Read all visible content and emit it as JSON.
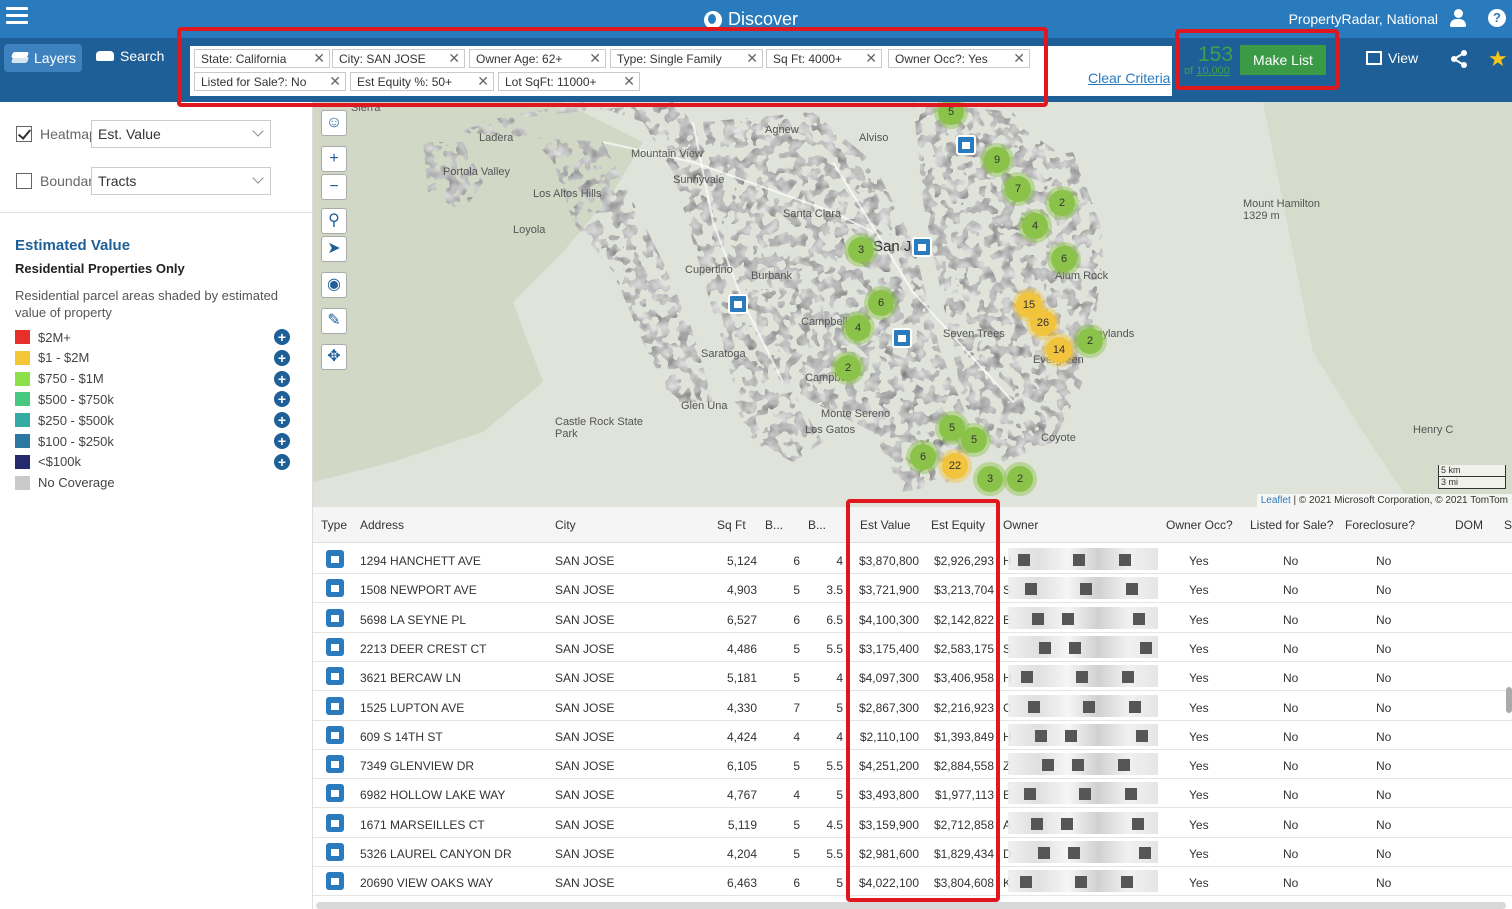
{
  "topbar": {
    "title": "Discover",
    "account": "PropertyRadar, National",
    "help": "?"
  },
  "toolbar": {
    "layers_label": "Layers",
    "search_label": "Search",
    "criteria": [
      "State: California",
      "City: SAN JOSE",
      "Owner Age: 62+",
      "Type: Single Family",
      "Sq Ft: 4000+",
      "Owner Occ?: Yes",
      "Listed for Sale?: No",
      "Est Equity %: 50+",
      "Lot SqFt: 11000+"
    ],
    "clear_label": "Clear Criteria",
    "count": "153",
    "count_of_prefix": "of",
    "count_of_total": "10,000",
    "make_list_label": "Make List",
    "view_label": "View",
    "remove_glyph": "✕"
  },
  "left_panel": {
    "heatmap_label": "Heatmap:",
    "heatmap_value": "Est. Value",
    "heatmap_checked": true,
    "boundary_label": "Boundary:",
    "boundary_value": "Tracts",
    "boundary_checked": false,
    "legend_title": "Estimated Value",
    "legend_subtitle": "Residential Properties Only",
    "legend_description": "Residential parcel areas shaded by estimated value of property",
    "legend": [
      {
        "label": "$2M+",
        "color": "#e8302b"
      },
      {
        "label": "$1 - $2M",
        "color": "#f3c537"
      },
      {
        "label": "$750 - $1M",
        "color": "#8ee04b"
      },
      {
        "label": "$500 - $750k",
        "color": "#46c880"
      },
      {
        "label": "$250 - $500k",
        "color": "#33aaa2"
      },
      {
        "label": "$100 - $250k",
        "color": "#2d78a3"
      },
      {
        "label": "<$100k",
        "color": "#252a6e"
      },
      {
        "label": "No Coverage",
        "color": "#c9c9c9"
      }
    ]
  },
  "map": {
    "places": [
      "Sierra",
      "Ladera",
      "Mountain View",
      "Portola Valley",
      "Sunnyvale",
      "Los Altos Hills",
      "Loyola",
      "Santa Clara",
      "Cupertino",
      "Burbank",
      "San Jo",
      "Campbell",
      "Saratoga",
      "Campbell",
      "Glen Una",
      "Castle Rock State Park",
      "Monte Sereno",
      "Los Gatos",
      "Mount Hamilton 1329 m",
      "Henry C",
      "Coyote",
      "Alum Rock",
      "Seven Trees",
      "Evergreen",
      "Agnew",
      "Alviso",
      "Baylands"
    ],
    "clusters": [
      {
        "n": "5",
        "c": "g"
      },
      {
        "n": "9",
        "c": "g"
      },
      {
        "n": "7",
        "c": "g"
      },
      {
        "n": "2",
        "c": "g"
      },
      {
        "n": "4",
        "c": "g"
      },
      {
        "n": "6",
        "c": "g"
      },
      {
        "n": "3",
        "c": "g"
      },
      {
        "n": "6",
        "c": "g"
      },
      {
        "n": "4",
        "c": "g"
      },
      {
        "n": "15",
        "c": "y"
      },
      {
        "n": "26",
        "c": "y"
      },
      {
        "n": "14",
        "c": "y"
      },
      {
        "n": "2",
        "c": "g"
      },
      {
        "n": "2",
        "c": "g"
      },
      {
        "n": "5",
        "c": "g"
      },
      {
        "n": "5",
        "c": "g"
      },
      {
        "n": "6",
        "c": "g"
      },
      {
        "n": "22",
        "c": "y"
      },
      {
        "n": "3",
        "c": "g"
      },
      {
        "n": "2",
        "c": "g"
      }
    ],
    "scale_km": "5 km",
    "scale_mi": "3 mi",
    "attribution_link": "Leaflet",
    "attribution_text": "| © 2021 Microsoft Corporation, © 2021 TomTom"
  },
  "table": {
    "columns": [
      "Type",
      "Address",
      "City",
      "Sq Ft",
      "B...",
      "B...",
      "Est Value",
      "Est Equity",
      "Owner",
      "Owner Occ?",
      "Listed for Sale?",
      "Foreclosure?",
      "DOM",
      "S"
    ],
    "rows": [
      {
        "address": "1294 HANCHETT AVE",
        "city": "SAN JOSE",
        "sqft": "5,124",
        "beds": "6",
        "baths": "4",
        "value": "$3,870,800",
        "equity": "$2,926,293",
        "owner": "H",
        "occ": "Yes",
        "listed": "No",
        "fc": "No"
      },
      {
        "address": "1508 NEWPORT AVE",
        "city": "SAN JOSE",
        "sqft": "4,903",
        "beds": "5",
        "baths": "3.5",
        "value": "$3,721,900",
        "equity": "$3,213,704",
        "owner": "S",
        "occ": "Yes",
        "listed": "No",
        "fc": "No"
      },
      {
        "address": "5698 LA SEYNE PL",
        "city": "SAN JOSE",
        "sqft": "6,527",
        "beds": "6",
        "baths": "6.5",
        "value": "$4,100,300",
        "equity": "$2,142,822",
        "owner": "E",
        "occ": "Yes",
        "listed": "No",
        "fc": "No"
      },
      {
        "address": "2213 DEER CREST CT",
        "city": "SAN JOSE",
        "sqft": "4,486",
        "beds": "5",
        "baths": "5.5",
        "value": "$3,175,400",
        "equity": "$2,583,175",
        "owner": "S",
        "occ": "Yes",
        "listed": "No",
        "fc": "No"
      },
      {
        "address": "3621 BERCAW LN",
        "city": "SAN JOSE",
        "sqft": "5,181",
        "beds": "5",
        "baths": "4",
        "value": "$4,097,300",
        "equity": "$3,406,958",
        "owner": "H",
        "occ": "Yes",
        "listed": "No",
        "fc": "No"
      },
      {
        "address": "1525 LUPTON AVE",
        "city": "SAN JOSE",
        "sqft": "4,330",
        "beds": "7",
        "baths": "5",
        "value": "$2,867,300",
        "equity": "$2,216,923",
        "owner": "C",
        "occ": "Yes",
        "listed": "No",
        "fc": "No"
      },
      {
        "address": "609 S 14TH ST",
        "city": "SAN JOSE",
        "sqft": "4,424",
        "beds": "4",
        "baths": "4",
        "value": "$2,110,100",
        "equity": "$1,393,849",
        "owner": "H",
        "occ": "Yes",
        "listed": "No",
        "fc": "No"
      },
      {
        "address": "7349 GLENVIEW DR",
        "city": "SAN JOSE",
        "sqft": "6,105",
        "beds": "5",
        "baths": "5.5",
        "value": "$4,251,200",
        "equity": "$2,884,558",
        "owner": "Z",
        "occ": "Yes",
        "listed": "No",
        "fc": "No"
      },
      {
        "address": "6982 HOLLOW LAKE WAY",
        "city": "SAN JOSE",
        "sqft": "4,767",
        "beds": "4",
        "baths": "5",
        "value": "$3,493,800",
        "equity": "$1,977,113",
        "owner": "E",
        "occ": "Yes",
        "listed": "No",
        "fc": "No"
      },
      {
        "address": "1671 MARSEILLES CT",
        "city": "SAN JOSE",
        "sqft": "5,119",
        "beds": "5",
        "baths": "4.5",
        "value": "$3,159,900",
        "equity": "$2,712,858",
        "owner": "A",
        "occ": "Yes",
        "listed": "No",
        "fc": "No"
      },
      {
        "address": "5326 LAUREL CANYON DR",
        "city": "SAN JOSE",
        "sqft": "4,204",
        "beds": "5",
        "baths": "5.5",
        "value": "$2,981,600",
        "equity": "$1,829,434",
        "owner": "D",
        "occ": "Yes",
        "listed": "No",
        "fc": "No"
      },
      {
        "address": "20690 VIEW OAKS WAY",
        "city": "SAN JOSE",
        "sqft": "6,463",
        "beds": "6",
        "baths": "5",
        "value": "$4,022,100",
        "equity": "$3,804,608",
        "owner": "K",
        "occ": "Yes",
        "listed": "No",
        "fc": "No"
      }
    ]
  }
}
